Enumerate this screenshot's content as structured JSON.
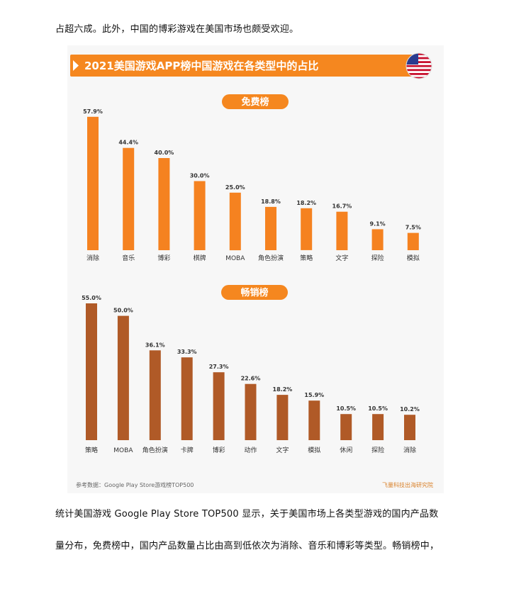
{
  "article": {
    "top_line": "占超六成。此外，中国的博彩游戏在美国市场也颇受欢迎。",
    "bottom_line_1": "统计美国游戏 Google Play Store TOP500 显示，关于美国市场上各类型游戏的国内产品数",
    "bottom_line_2": "量分布，免费榜中，国内产品数量占比由高到低依次为消除、音乐和博彩等类型。畅销榜中，"
  },
  "figure": {
    "title": "2021美国游戏APP榜中国游戏在各类型中的占比",
    "source": "参考数据：Google Play Store游戏榜TOP500",
    "credit": "飞量科技出海研究院",
    "flag_icon": "us-flag-icon",
    "colors": {
      "banner": "#f5871f",
      "free_bar": "#f58220",
      "grossing_bar": "#b05a27",
      "pill": "#f5871f"
    }
  },
  "chart_data": [
    {
      "type": "bar",
      "title": "免费榜",
      "categories": [
        "消除",
        "音乐",
        "博彩",
        "棋牌",
        "MOBA",
        "角色扮演",
        "策略",
        "文字",
        "探险",
        "模拟"
      ],
      "values": [
        57.9,
        44.4,
        40.0,
        30.0,
        25.0,
        18.8,
        18.2,
        16.7,
        9.1,
        7.5
      ],
      "value_labels": [
        "57.9%",
        "44.4%",
        "40.0%",
        "30.0%",
        "25.0%",
        "18.8%",
        "18.2%",
        "16.7%",
        "9.1%",
        "7.5%"
      ],
      "unit": "%",
      "ylim": [
        0,
        60
      ],
      "grid": false,
      "legend": "none"
    },
    {
      "type": "bar",
      "title": "畅销榜",
      "categories": [
        "策略",
        "MOBA",
        "角色扮演",
        "卡牌",
        "博彩",
        "动作",
        "文字",
        "模拟",
        "休闲",
        "探险",
        "消除"
      ],
      "values": [
        55.0,
        50.0,
        36.1,
        33.3,
        27.3,
        22.6,
        18.2,
        15.9,
        10.5,
        10.5,
        10.2
      ],
      "value_labels": [
        "55.0%",
        "50.0%",
        "36.1%",
        "33.3%",
        "27.3%",
        "22.6%",
        "18.2%",
        "15.9%",
        "10.5%",
        "10.5%",
        "10.2%"
      ],
      "unit": "%",
      "ylim": [
        0,
        57
      ],
      "grid": false,
      "legend": "none"
    }
  ]
}
